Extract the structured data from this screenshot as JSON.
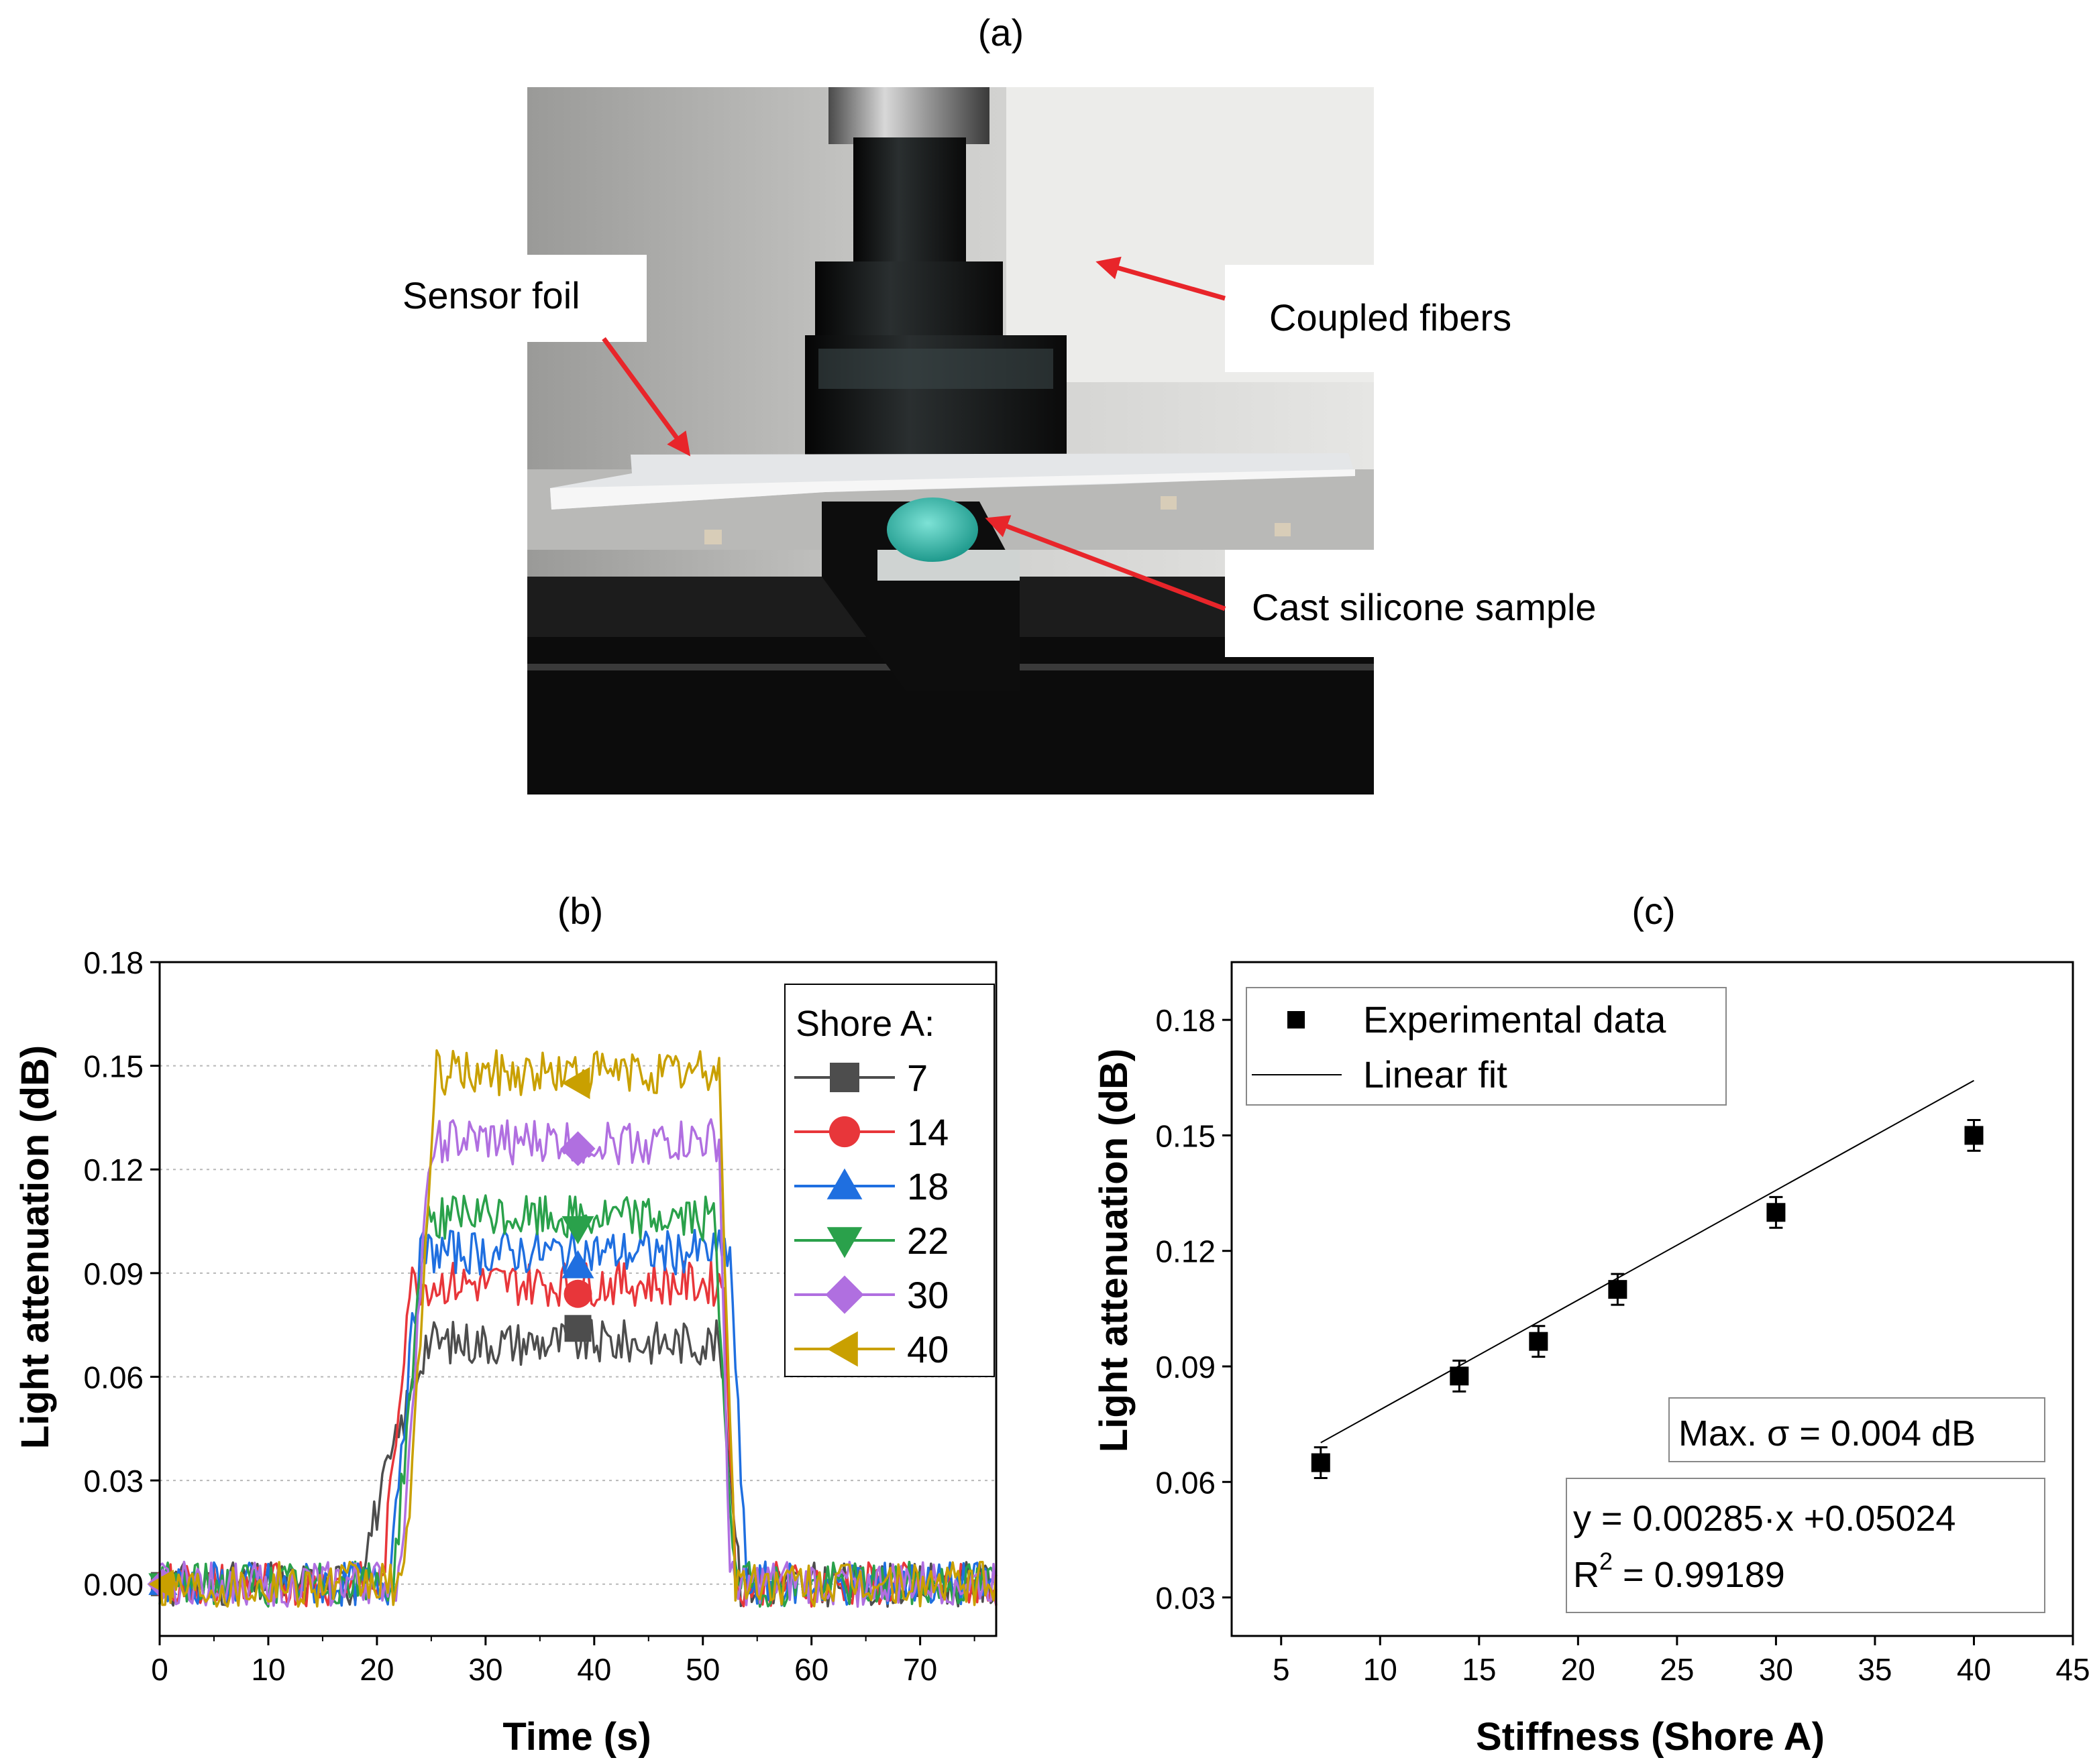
{
  "panel_a": {
    "label": "(a)",
    "callouts": {
      "sensor_foil": "Sensor foil",
      "coupled_fibers": "Coupled fibers",
      "cast_silicone": "Cast silicone sample"
    }
  },
  "chart_data": [
    {
      "panel": "(b)",
      "type": "line",
      "title": "",
      "xlabel": "Time (s)",
      "ylabel": "Light attenuation (dB)",
      "xlim": [
        0,
        77
      ],
      "ylim": [
        -0.015,
        0.18
      ],
      "xticks": [
        0,
        10,
        20,
        30,
        40,
        50,
        60,
        70
      ],
      "yticks": [
        0.0,
        0.03,
        0.06,
        0.09,
        0.12,
        0.15,
        0.18
      ],
      "ytick_labels": [
        "0.00",
        "0.03",
        "0.06",
        "0.09",
        "0.12",
        "0.15",
        "0.18"
      ],
      "grid": "horizontal dotted",
      "legend": {
        "title": "Shore A:",
        "placement": "top-right"
      },
      "series": [
        {
          "name": "7",
          "color": "#4d4d4d",
          "marker": "square",
          "rise": [
            18.0,
            24.5
          ],
          "fall": [
            51.5,
            53.5
          ],
          "plateau": 0.07,
          "marker_point": [
            38.5,
            0.074
          ]
        },
        {
          "name": "14",
          "color": "#e8363a",
          "marker": "circle",
          "rise": [
            20.5,
            23.0
          ],
          "fall": [
            52.0,
            53.0
          ],
          "plateau": 0.087,
          "marker_point": [
            38.5,
            0.084
          ]
        },
        {
          "name": "18",
          "color": "#1f6fe0",
          "marker": "triangle-up",
          "rise": [
            21.0,
            24.0
          ],
          "fall": [
            52.5,
            54.0
          ],
          "plateau": 0.096,
          "marker_point": [
            38.5,
            0.092
          ]
        },
        {
          "name": "22",
          "color": "#2aa14b",
          "marker": "triangle-down",
          "rise": [
            21.5,
            24.5
          ],
          "fall": [
            51.0,
            53.0
          ],
          "plateau": 0.106,
          "marker_point": [
            38.5,
            0.103
          ]
        },
        {
          "name": "30",
          "color": "#b06fe0",
          "marker": "diamond",
          "rise": [
            22.0,
            25.0
          ],
          "fall": [
            51.5,
            52.5
          ],
          "plateau": 0.128,
          "marker_point": [
            38.5,
            0.126
          ]
        },
        {
          "name": "40",
          "color": "#c9a000",
          "marker": "triangle-left",
          "rise": [
            22.5,
            25.5
          ],
          "fall": [
            51.5,
            53.0
          ],
          "plateau": 0.148,
          "marker_point": [
            38.5,
            0.145
          ]
        }
      ]
    },
    {
      "panel": "(c)",
      "type": "scatter",
      "title": "",
      "xlabel": "Stiffness (Shore A)",
      "ylabel": "Light attenuation (dB)",
      "xlim": [
        2.5,
        45
      ],
      "ylim": [
        0.02,
        0.195
      ],
      "xticks": [
        5,
        10,
        15,
        20,
        25,
        30,
        35,
        40,
        45
      ],
      "yticks": [
        0.03,
        0.06,
        0.09,
        0.12,
        0.15,
        0.18
      ],
      "ytick_labels": [
        "0.03",
        "0.06",
        "0.09",
        "0.12",
        "0.15",
        "0.18"
      ],
      "grid": "off",
      "legend": {
        "placement": "top-left",
        "entries": [
          "Experimental data",
          "Linear fit"
        ]
      },
      "x": [
        7,
        14,
        18,
        22,
        30,
        40
      ],
      "y": [
        0.065,
        0.0875,
        0.0965,
        0.11,
        0.13,
        0.15
      ],
      "yerr": [
        0.004,
        0.004,
        0.004,
        0.004,
        0.004,
        0.004
      ],
      "fit": {
        "slope": 0.00285,
        "intercept": 0.05024,
        "x_range": [
          7,
          40
        ]
      },
      "annotations": {
        "sigma": "Max. σ = 0.004 dB",
        "equation": "y = 0.00285·x +0.05024",
        "r2_prefix": "R",
        "r2_sup": "2",
        "r2_value": " = 0.99189"
      }
    }
  ]
}
